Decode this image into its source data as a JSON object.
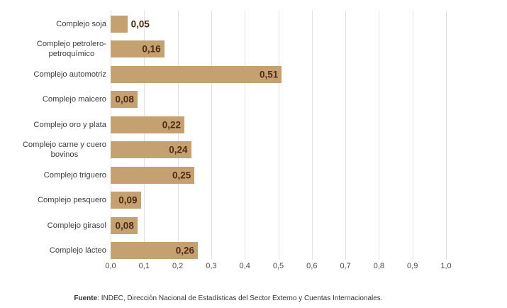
{
  "chart_data": {
    "type": "bar",
    "orientation": "horizontal",
    "categories": [
      "Complejo soja",
      "Complejo petrolero-petroquímico",
      "Complejo automotriz",
      "Complejo maicero",
      "Complejo oro y plata",
      "Complejo carne y cuero bovinos",
      "Complejo triguero",
      "Complejo pesquero",
      "Complejo girasol",
      "Complejo lácteo"
    ],
    "label_lines": [
      [
        "Complejo soja"
      ],
      [
        "Complejo petrolero-",
        "petroquímico"
      ],
      [
        "Complejo automotriz"
      ],
      [
        "Complejo maicero"
      ],
      [
        "Complejo oro y plata"
      ],
      [
        "Complejo carne y cuero",
        "bovinos"
      ],
      [
        "Complejo triguero"
      ],
      [
        "Complejo pesquero"
      ],
      [
        "Complejo girasol"
      ],
      [
        "Complejo lácteo"
      ]
    ],
    "values": [
      0.05,
      0.16,
      0.51,
      0.08,
      0.22,
      0.24,
      0.25,
      0.09,
      0.08,
      0.26
    ],
    "value_labels": [
      "0,05",
      "0,16",
      "0,51",
      "0,08",
      "0,22",
      "0,24",
      "0,25",
      "0,09",
      "0,08",
      "0,26"
    ],
    "xlim": [
      0,
      1.0
    ],
    "x_tick_values": [
      0,
      0.1,
      0.2,
      0.3,
      0.4,
      0.5,
      0.6,
      0.7,
      0.8,
      0.9,
      1.0
    ],
    "x_tick_labels": [
      "0,0",
      "0,1",
      "0,2",
      "0,3",
      "0,4",
      "0,5",
      "0,6",
      "0,7",
      "0,8",
      "0,9",
      "1,0"
    ],
    "grid": true,
    "legend": false,
    "source": {
      "prefix": "Fuente",
      "text": ": INDEC, Dirección Nacional de Estadísticas del Sector Externo y Cuentas Internacionales."
    },
    "colors": {
      "background": "#FFFFFF",
      "bar": "#C5A171",
      "value_label": "#4E2B15",
      "category_label": "#3D3D3D",
      "axis_label": "#4A4A4A",
      "gridline": "#E2E2E2",
      "source_text": "#333333"
    }
  }
}
